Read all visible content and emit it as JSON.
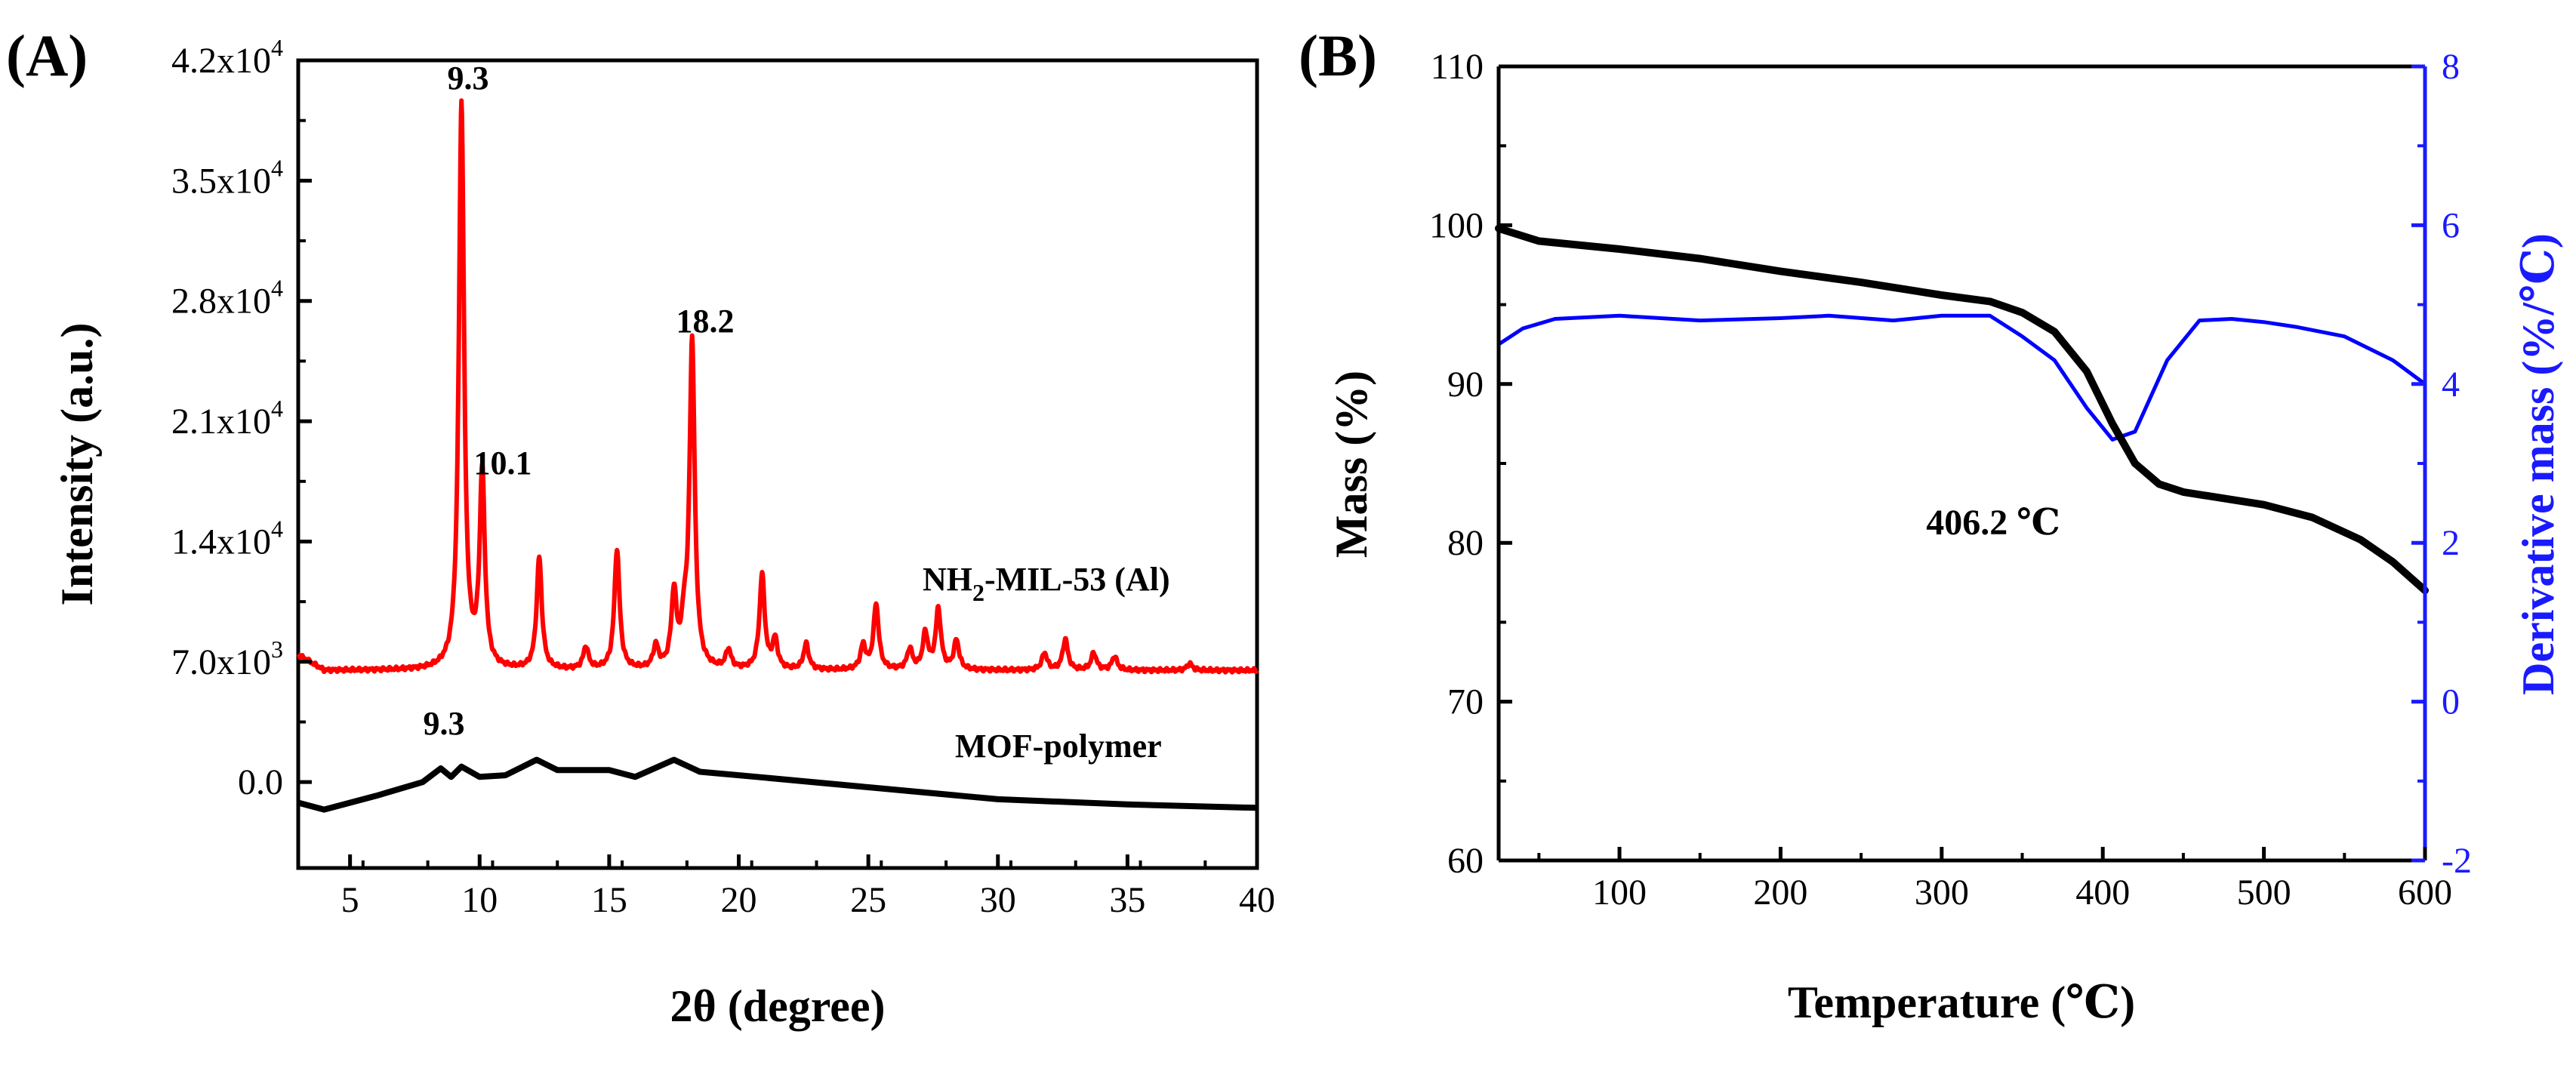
{
  "panels": {
    "A": {
      "label": "(A)",
      "xlabel": "2θ (degree)",
      "ylabel": "Intensity (a.u.)",
      "x_ticks": [
        "5",
        "10",
        "15",
        "20",
        "25",
        "30",
        "35",
        "40"
      ],
      "y_ticks": [
        {
          "mant": "0.0",
          "exp": ""
        },
        {
          "mant": "7.0x10",
          "exp": "3"
        },
        {
          "mant": "1.4x10",
          "exp": "4"
        },
        {
          "mant": "2.1x10",
          "exp": "4"
        },
        {
          "mant": "2.8x10",
          "exp": "4"
        },
        {
          "mant": "3.5x10",
          "exp": "4"
        },
        {
          "mant": "4.2x10",
          "exp": "4"
        }
      ],
      "series_labels": {
        "red_main": "NH",
        "red_sub": "2",
        "red_rest": "-MIL-53 (Al)",
        "black": "MOF-polymer"
      },
      "peak_labels": [
        "9.3",
        "10.1",
        "18.2",
        "9.3"
      ]
    },
    "B": {
      "label": "(B)",
      "xlabel": "Temperature (℃)",
      "ylabel_left": "Mass (%)",
      "ylabel_right": "Derivative mass (%/℃)",
      "x_ticks": [
        "100",
        "200",
        "300",
        "400",
        "500",
        "600"
      ],
      "y_left_ticks": [
        "60",
        "70",
        "80",
        "90",
        "100",
        "110"
      ],
      "y_right_ticks": [
        "-2",
        "0",
        "2",
        "4",
        "6",
        "8"
      ],
      "annotation": "406.2 ℃"
    }
  },
  "colors": {
    "red": "#ff0000",
    "black": "#000000",
    "blue": "#0000ff",
    "right_axis": "#1a1aff"
  },
  "chart_data": [
    {
      "type": "line",
      "title": "(A)",
      "xlabel": "2θ (degree)",
      "ylabel": "Intensity (a.u.)",
      "xlim": [
        3,
        40
      ],
      "ylim": [
        -5000,
        42000
      ],
      "series": [
        {
          "name": "NH2-MIL-53 (Al)",
          "color": "#ff0000",
          "baseline": 6500,
          "baseline_start": 7400,
          "peaks": [
            {
              "x": 9.3,
              "y": 39500
            },
            {
              "x": 10.1,
              "y": 17800
            },
            {
              "x": 12.3,
              "y": 13000
            },
            {
              "x": 14.1,
              "y": 7800
            },
            {
              "x": 15.3,
              "y": 13500
            },
            {
              "x": 16.8,
              "y": 7800
            },
            {
              "x": 17.5,
              "y": 10800
            },
            {
              "x": 17.9,
              "y": 8600
            },
            {
              "x": 18.2,
              "y": 25500
            },
            {
              "x": 19.6,
              "y": 7600
            },
            {
              "x": 20.9,
              "y": 12000
            },
            {
              "x": 21.4,
              "y": 8200
            },
            {
              "x": 22.6,
              "y": 8000
            },
            {
              "x": 24.8,
              "y": 7900
            },
            {
              "x": 25.3,
              "y": 10300
            },
            {
              "x": 26.6,
              "y": 7700
            },
            {
              "x": 27.2,
              "y": 8600
            },
            {
              "x": 27.7,
              "y": 10000
            },
            {
              "x": 28.4,
              "y": 8200
            },
            {
              "x": 31.8,
              "y": 7500
            },
            {
              "x": 32.6,
              "y": 8300
            },
            {
              "x": 33.7,
              "y": 7500
            },
            {
              "x": 34.5,
              "y": 7300
            },
            {
              "x": 37.4,
              "y": 6900
            }
          ]
        },
        {
          "name": "MOF-polymer",
          "color": "#000000",
          "points": [
            [
              3,
              -1200
            ],
            [
              4,
              -1600
            ],
            [
              6,
              -800
            ],
            [
              7.8,
              0
            ],
            [
              8.5,
              800
            ],
            [
              8.9,
              300
            ],
            [
              9.3,
              900
            ],
            [
              10,
              300
            ],
            [
              11,
              400
            ],
            [
              12.2,
              1300
            ],
            [
              13,
              700
            ],
            [
              15,
              700
            ],
            [
              16,
              300
            ],
            [
              17.5,
              1300
            ],
            [
              18.5,
              600
            ],
            [
              20,
              400
            ],
            [
              25,
              -300
            ],
            [
              30,
              -1000
            ],
            [
              35,
              -1300
            ],
            [
              40,
              -1500
            ]
          ]
        }
      ],
      "annotations": [
        "9.3",
        "10.1",
        "18.2",
        "9.3"
      ]
    },
    {
      "type": "line",
      "title": "(B)",
      "xlabel": "Temperature (℃)",
      "ylabel": "Mass (%)",
      "y2label": "Derivative mass (%/℃)",
      "xlim": [
        25,
        600
      ],
      "ylim": [
        60,
        110
      ],
      "y2lim": [
        -2,
        8
      ],
      "series": [
        {
          "name": "Mass",
          "axis": "left",
          "color": "#000000",
          "points": [
            [
              25,
              99.8
            ],
            [
              50,
              99.0
            ],
            [
              100,
              98.5
            ],
            [
              150,
              97.9
            ],
            [
              200,
              97.1
            ],
            [
              250,
              96.4
            ],
            [
              300,
              95.6
            ],
            [
              330,
              95.2
            ],
            [
              350,
              94.5
            ],
            [
              370,
              93.3
            ],
            [
              390,
              90.8
            ],
            [
              406,
              87.5
            ],
            [
              420,
              85.0
            ],
            [
              435,
              83.7
            ],
            [
              450,
              83.2
            ],
            [
              500,
              82.4
            ],
            [
              530,
              81.6
            ],
            [
              560,
              80.2
            ],
            [
              580,
              78.8
            ],
            [
              600,
              77.0
            ]
          ]
        },
        {
          "name": "Derivative mass",
          "axis": "right",
          "color": "#0000ff",
          "points": [
            [
              25,
              4.5
            ],
            [
              40,
              4.7
            ],
            [
              60,
              4.82
            ],
            [
              100,
              4.86
            ],
            [
              150,
              4.8
            ],
            [
              200,
              4.83
            ],
            [
              230,
              4.86
            ],
            [
              270,
              4.8
            ],
            [
              300,
              4.86
            ],
            [
              330,
              4.86
            ],
            [
              350,
              4.6
            ],
            [
              370,
              4.3
            ],
            [
              390,
              3.7
            ],
            [
              406,
              3.3
            ],
            [
              420,
              3.4
            ],
            [
              440,
              4.3
            ],
            [
              460,
              4.8
            ],
            [
              480,
              4.82
            ],
            [
              500,
              4.78
            ],
            [
              520,
              4.72
            ],
            [
              550,
              4.6
            ],
            [
              580,
              4.3
            ],
            [
              600,
              4.0
            ]
          ]
        }
      ],
      "annotations": [
        "406.2 ℃"
      ]
    }
  ]
}
